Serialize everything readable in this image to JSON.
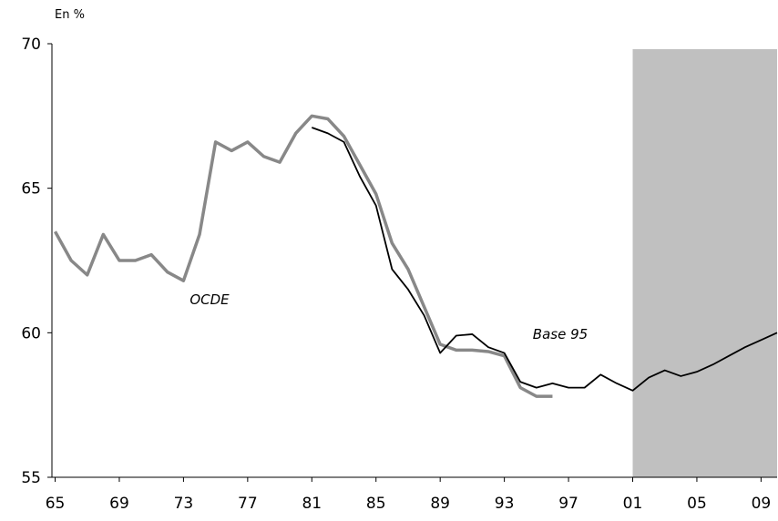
{
  "chart_data": {
    "type": "line",
    "y_label": "En %",
    "x": [
      1965,
      1966,
      1967,
      1968,
      1969,
      1970,
      1971,
      1972,
      1973,
      1974,
      1975,
      1976,
      1977,
      1978,
      1979,
      1980,
      1981,
      1982,
      1983,
      1984,
      1985,
      1986,
      1987,
      1988,
      1989,
      1990,
      1991,
      1992,
      1993,
      1994,
      1995,
      1996,
      1997,
      1998,
      1999,
      2000,
      2001,
      2002,
      2003,
      2004,
      2005,
      2006,
      2007,
      2008,
      2009,
      2010
    ],
    "series": [
      {
        "name": "OCDE",
        "color": "#888888",
        "values": [
          63.5,
          62.5,
          62.0,
          63.4,
          62.5,
          62.5,
          62.7,
          62.1,
          61.8,
          63.4,
          66.6,
          66.3,
          66.6,
          66.1,
          65.9,
          66.9,
          67.5,
          67.4,
          66.8,
          65.8,
          64.8,
          63.1,
          62.2,
          60.9,
          59.6,
          59.4,
          59.4,
          59.35,
          59.2,
          58.1,
          57.8,
          57.8,
          null,
          null,
          null,
          null,
          null,
          null,
          null,
          null,
          null,
          null,
          null,
          null,
          null,
          null
        ]
      },
      {
        "name": "Base 95",
        "color": "#000000",
        "values": [
          null,
          null,
          null,
          null,
          null,
          null,
          null,
          null,
          null,
          null,
          null,
          null,
          null,
          null,
          null,
          null,
          67.1,
          66.9,
          66.6,
          65.4,
          64.4,
          62.2,
          61.5,
          60.6,
          59.3,
          59.9,
          59.95,
          59.5,
          59.3,
          58.3,
          58.1,
          58.25,
          58.1,
          58.1,
          58.55,
          58.25,
          58.0,
          58.45,
          58.7,
          58.5,
          58.65,
          58.9,
          59.2,
          59.5,
          59.75,
          60.0
        ]
      }
    ],
    "xlim": [
      1964.8,
      2010
    ],
    "xticks": [
      {
        "value": 1965,
        "label": "65"
      },
      {
        "value": 1969,
        "label": "69"
      },
      {
        "value": 1973,
        "label": "73"
      },
      {
        "value": 1977,
        "label": "77"
      },
      {
        "value": 1981,
        "label": "81"
      },
      {
        "value": 1985,
        "label": "85"
      },
      {
        "value": 1989,
        "label": "89"
      },
      {
        "value": 1993,
        "label": "93"
      },
      {
        "value": 1997,
        "label": "97"
      },
      {
        "value": 2001,
        "label": "01"
      },
      {
        "value": 2005,
        "label": "05"
      },
      {
        "value": 2009,
        "label": "09"
      }
    ],
    "ylim": [
      55,
      70
    ],
    "yticks": [
      55,
      60,
      65,
      70
    ],
    "shaded_x": [
      2001,
      2010
    ],
    "shade_color": "#c0c0c0",
    "grid": false
  }
}
